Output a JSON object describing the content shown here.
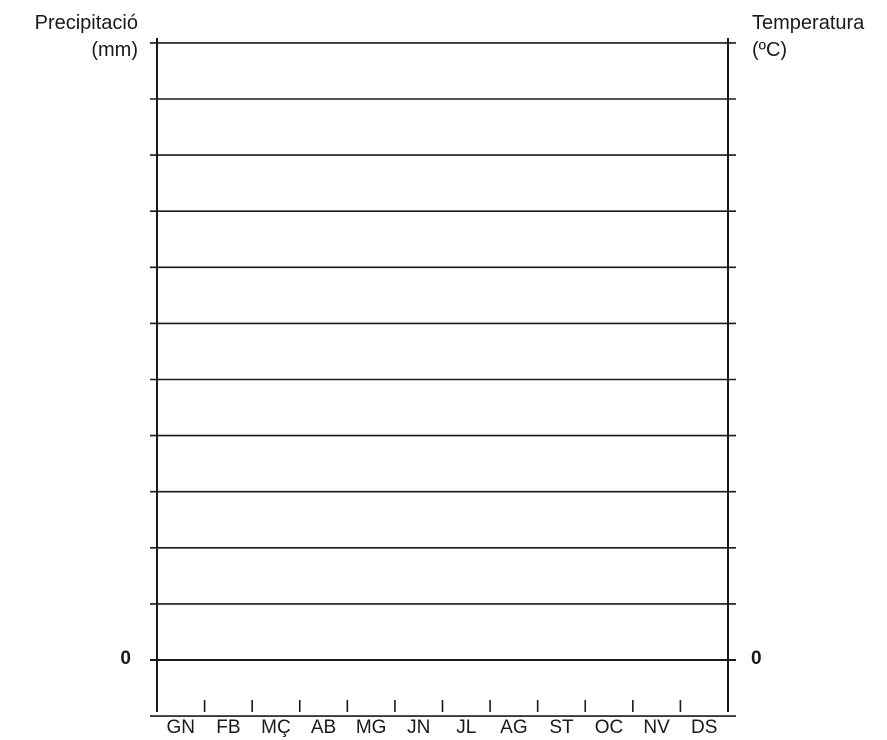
{
  "chart_data": {
    "type": "line",
    "title": "",
    "left_axis": {
      "label_line1": "Precipitació",
      "label_line2": "(mm)",
      "zero_label": "0"
    },
    "right_axis": {
      "label_line1": "Temperatura",
      "label_line2": "(ºC)",
      "zero_label": "0"
    },
    "categories": [
      "GN",
      "FB",
      "MÇ",
      "AB",
      "MG",
      "JN",
      "JL",
      "AG",
      "ST",
      "OC",
      "NV",
      "DS"
    ],
    "gridlines_above_zero": 11,
    "gridlines_below_zero": 1,
    "grid": true,
    "series": []
  }
}
